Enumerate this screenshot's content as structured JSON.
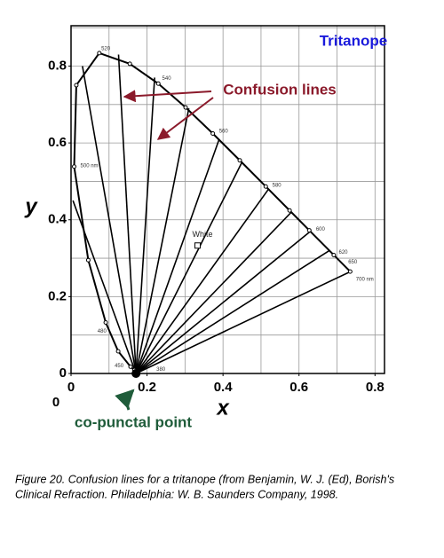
{
  "chart_data": {
    "type": "chromaticity",
    "title": "Tritanope",
    "x_label": "x",
    "y_label": "y",
    "corner_label": "0",
    "xlim": [
      0,
      0.825
    ],
    "ylim": [
      0,
      0.905
    ],
    "xticks": [
      0,
      0.2,
      0.4,
      0.6,
      0.8
    ],
    "yticks": [
      0,
      0.2,
      0.4,
      0.6,
      0.8
    ],
    "x_grid": [
      0.1,
      0.2,
      0.3,
      0.4,
      0.5,
      0.6,
      0.7,
      0.8
    ],
    "y_grid": [
      0.1,
      0.2,
      0.3,
      0.4,
      0.5,
      0.6,
      0.7,
      0.8,
      0.9
    ],
    "grid": true,
    "locus": {
      "x": [
        0.1741,
        0.1666,
        0.1566,
        0.1241,
        0.0913,
        0.0454,
        0.0082,
        0.0139,
        0.0743,
        0.1547,
        0.2296,
        0.3016,
        0.3731,
        0.4441,
        0.5125,
        0.5752,
        0.627,
        0.6915,
        0.7347
      ],
      "y": [
        0.005,
        0.0089,
        0.0177,
        0.0578,
        0.1327,
        0.295,
        0.5384,
        0.7502,
        0.8338,
        0.8059,
        0.7543,
        0.6923,
        0.6245,
        0.5547,
        0.4866,
        0.4242,
        0.3725,
        0.3083,
        0.2653
      ]
    },
    "copunctal_point": {
      "x": 0.171,
      "y": 0.0
    },
    "confusion_line_ends": {
      "x": [
        0.005,
        0.03,
        0.125,
        0.22,
        0.31,
        0.39,
        0.45,
        0.52,
        0.58,
        0.63,
        0.68,
        0.735
      ],
      "y": [
        0.45,
        0.8,
        0.83,
        0.77,
        0.69,
        0.61,
        0.55,
        0.48,
        0.42,
        0.37,
        0.32,
        0.265
      ]
    },
    "white_point": {
      "label": "White",
      "x": 0.333,
      "y": 0.333
    },
    "wavelength_labels": [
      {
        "text": "520",
        "x": 0.075,
        "y": 0.845
      },
      {
        "text": "540",
        "x": 0.235,
        "y": 0.768
      },
      {
        "text": "560",
        "x": 0.385,
        "y": 0.63
      },
      {
        "text": "580",
        "x": 0.525,
        "y": 0.49
      },
      {
        "text": "600",
        "x": 0.64,
        "y": 0.375
      },
      {
        "text": "620",
        "x": 0.7,
        "y": 0.315
      },
      {
        "text": "650",
        "x": 0.725,
        "y": 0.29
      },
      {
        "text": "700 nm",
        "x": 0.745,
        "y": 0.245
      },
      {
        "text": "500 nm",
        "x": 0.02,
        "y": 0.54
      },
      {
        "text": "480",
        "x": 0.065,
        "y": 0.11
      },
      {
        "text": "450",
        "x": 0.11,
        "y": 0.02
      },
      {
        "text": "380",
        "x": 0.22,
        "y": 0.01
      }
    ],
    "annotations": [
      {
        "text": "Confusion lines"
      },
      {
        "text": "co-punctal point"
      }
    ],
    "caption": [
      "Figure 20. Confusion lines for a tritanope (from Benjamin, W. J. (Ed), Borish's",
      "Clinical Refraction. Philadelphia: W. B. Saunders Company, 1998."
    ]
  }
}
